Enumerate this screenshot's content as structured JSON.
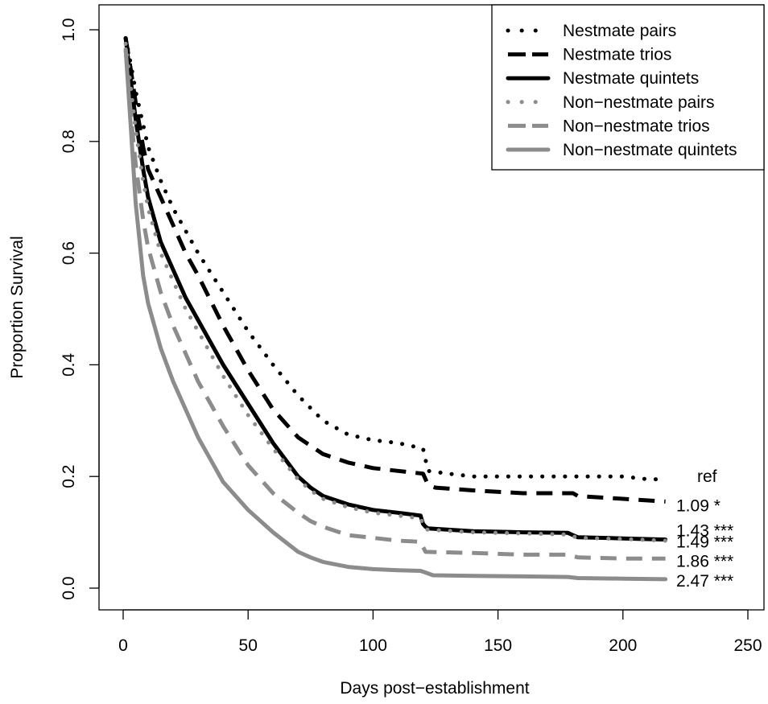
{
  "chart_data": {
    "type": "line",
    "title": "",
    "xlabel": "Days post−establishment",
    "ylabel": "Proportion Survival",
    "xlim": [
      0,
      250
    ],
    "ylim": [
      0,
      1.0
    ],
    "xticks": [
      0,
      50,
      100,
      150,
      200,
      250
    ],
    "yticks": [
      0.0,
      0.2,
      0.4,
      0.6,
      0.8,
      1.0
    ],
    "xtick_labels": [
      "0",
      "50",
      "100",
      "150",
      "200",
      "250"
    ],
    "ytick_labels": [
      "0.0",
      "0.2",
      "0.4",
      "0.6",
      "0.8",
      "1.0"
    ],
    "grid": false,
    "legend_position": "top-right",
    "series": [
      {
        "name": "Nestmate pairs",
        "color": "#000000",
        "style": "dotted",
        "x": [
          1,
          3,
          5,
          8,
          10,
          15,
          20,
          25,
          30,
          40,
          50,
          60,
          70,
          80,
          90,
          100,
          110,
          120,
          122,
          130,
          140,
          150,
          160,
          170,
          180,
          190,
          200,
          210,
          217
        ],
        "y": [
          0.985,
          0.94,
          0.89,
          0.83,
          0.79,
          0.73,
          0.68,
          0.64,
          0.6,
          0.53,
          0.46,
          0.4,
          0.345,
          0.3,
          0.275,
          0.265,
          0.26,
          0.25,
          0.21,
          0.205,
          0.2,
          0.2,
          0.2,
          0.2,
          0.2,
          0.2,
          0.2,
          0.195,
          0.195
        ]
      },
      {
        "name": "Nestmate trios",
        "color": "#000000",
        "style": "dashed",
        "x": [
          1,
          3,
          5,
          8,
          10,
          15,
          20,
          25,
          30,
          40,
          50,
          60,
          70,
          80,
          90,
          100,
          110,
          120,
          122,
          125,
          140,
          160,
          180,
          182,
          200,
          217
        ],
        "y": [
          0.985,
          0.93,
          0.87,
          0.79,
          0.75,
          0.7,
          0.65,
          0.6,
          0.56,
          0.47,
          0.39,
          0.32,
          0.27,
          0.24,
          0.225,
          0.215,
          0.21,
          0.205,
          0.185,
          0.18,
          0.175,
          0.17,
          0.17,
          0.165,
          0.16,
          0.155
        ]
      },
      {
        "name": "Nestmate quintets",
        "color": "#000000",
        "style": "solid",
        "x": [
          1,
          3,
          5,
          8,
          10,
          15,
          20,
          25,
          30,
          40,
          50,
          60,
          70,
          75,
          80,
          90,
          100,
          110,
          119,
          120,
          121,
          122,
          140,
          160,
          178,
          180,
          182,
          200,
          217
        ],
        "y": [
          0.985,
          0.91,
          0.84,
          0.75,
          0.7,
          0.62,
          0.57,
          0.52,
          0.48,
          0.4,
          0.33,
          0.26,
          0.2,
          0.18,
          0.165,
          0.15,
          0.14,
          0.135,
          0.13,
          0.115,
          0.11,
          0.107,
          0.102,
          0.1,
          0.099,
          0.095,
          0.091,
          0.089,
          0.087
        ]
      },
      {
        "name": "Non−nestmate pairs",
        "color": "#8c8c8c",
        "style": "dotted",
        "x": [
          1,
          3,
          5,
          8,
          10,
          15,
          20,
          25,
          30,
          40,
          50,
          60,
          70,
          75,
          80,
          90,
          100,
          110,
          119,
          121,
          140,
          160,
          178,
          182,
          200,
          217
        ],
        "y": [
          0.975,
          0.9,
          0.82,
          0.73,
          0.68,
          0.6,
          0.55,
          0.5,
          0.46,
          0.38,
          0.31,
          0.25,
          0.195,
          0.175,
          0.16,
          0.145,
          0.135,
          0.13,
          0.125,
          0.105,
          0.1,
          0.098,
          0.096,
          0.09,
          0.088,
          0.085
        ]
      },
      {
        "name": "Non−nestmate trios",
        "color": "#8c8c8c",
        "style": "dashed",
        "x": [
          1,
          3,
          5,
          8,
          10,
          15,
          20,
          25,
          30,
          40,
          50,
          60,
          70,
          75,
          80,
          90,
          100,
          110,
          119,
          121,
          140,
          160,
          178,
          182,
          200,
          217
        ],
        "y": [
          0.965,
          0.85,
          0.76,
          0.66,
          0.61,
          0.53,
          0.47,
          0.42,
          0.37,
          0.29,
          0.22,
          0.17,
          0.135,
          0.12,
          0.11,
          0.095,
          0.09,
          0.085,
          0.083,
          0.065,
          0.063,
          0.06,
          0.06,
          0.055,
          0.053,
          0.053
        ]
      },
      {
        "name": "Non−nestmate quintets",
        "color": "#8c8c8c",
        "style": "solid",
        "x": [
          1,
          3,
          5,
          8,
          10,
          15,
          20,
          25,
          30,
          40,
          50,
          60,
          70,
          75,
          80,
          90,
          100,
          110,
          119,
          121,
          124,
          140,
          160,
          178,
          182,
          200,
          217
        ],
        "y": [
          0.965,
          0.83,
          0.69,
          0.56,
          0.51,
          0.43,
          0.37,
          0.32,
          0.27,
          0.19,
          0.14,
          0.1,
          0.065,
          0.055,
          0.047,
          0.038,
          0.034,
          0.032,
          0.031,
          0.028,
          0.023,
          0.022,
          0.021,
          0.02,
          0.018,
          0.017,
          0.016
        ]
      }
    ],
    "annotations": [
      {
        "text": "ref",
        "y": 0.2
      },
      {
        "text": "1.09 *",
        "y": 0.148
      },
      {
        "text": "1.43 ***",
        "y": 0.103
      },
      {
        "text": "1.49 ***",
        "y": 0.083
      },
      {
        "text": "1.86 ***",
        "y": 0.048
      },
      {
        "text": "2.47 ***",
        "y": 0.013
      }
    ]
  }
}
